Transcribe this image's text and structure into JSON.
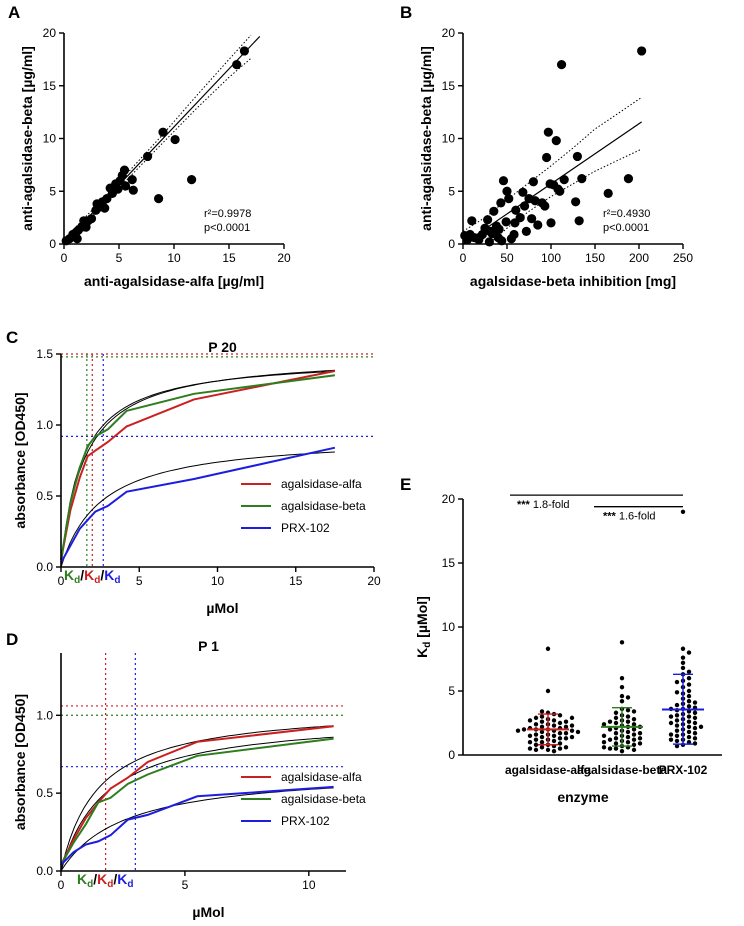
{
  "chart_data": [
    {
      "id": "A",
      "panel_label": "A",
      "type": "scatter",
      "xlabel": "anti-agalsidase-alfa [µg/ml]",
      "ylabel": "anti-agalsidase-beta [µg/ml]",
      "xlim": [
        0,
        20
      ],
      "ylim": [
        0,
        20
      ],
      "xticks": [
        0,
        5,
        10,
        15,
        20
      ],
      "yticks": [
        0,
        5,
        10,
        15,
        20
      ],
      "stat_r2": "r²=0.9978",
      "stat_p": "p<0.0001",
      "regression": {
        "slope": 1.1,
        "intercept": 0.1,
        "x_range": [
          0,
          17.8
        ]
      },
      "ci_lower": {
        "x": [
          0,
          3,
          6,
          9,
          12,
          15,
          17
        ],
        "y": [
          -0.15,
          3.1,
          6.4,
          9.6,
          12.8,
          15.8,
          17.6
        ]
      },
      "ci_upper": {
        "x": [
          0,
          3,
          6,
          9,
          12,
          15,
          17
        ],
        "y": [
          0.45,
          3.7,
          7.0,
          10.4,
          14.0,
          17.5,
          19.8
        ]
      },
      "points": [
        [
          0.2,
          0.3
        ],
        [
          0.5,
          0.5
        ],
        [
          0.8,
          0.9
        ],
        [
          1.0,
          0.7
        ],
        [
          1.1,
          1.1
        ],
        [
          1.2,
          0.5
        ],
        [
          1.3,
          1.3
        ],
        [
          1.6,
          1.6
        ],
        [
          1.8,
          2.2
        ],
        [
          2.0,
          1.6
        ],
        [
          2.2,
          2.2
        ],
        [
          2.5,
          2.4
        ],
        [
          2.9,
          3.2
        ],
        [
          3.0,
          3.8
        ],
        [
          3.2,
          3.5
        ],
        [
          3.5,
          4.0
        ],
        [
          3.7,
          3.4
        ],
        [
          3.9,
          4.3
        ],
        [
          4.2,
          5.3
        ],
        [
          4.4,
          4.8
        ],
        [
          4.7,
          5.7
        ],
        [
          4.9,
          5.2
        ],
        [
          5.1,
          6.0
        ],
        [
          5.3,
          6.5
        ],
        [
          5.5,
          7.0
        ],
        [
          5.6,
          5.5
        ],
        [
          6.2,
          6.1
        ],
        [
          6.3,
          5.1
        ],
        [
          7.6,
          8.3
        ],
        [
          8.6,
          4.3
        ],
        [
          9.0,
          10.6
        ],
        [
          10.1,
          9.9
        ],
        [
          11.6,
          6.1
        ],
        [
          15.7,
          17.0
        ],
        [
          16.4,
          18.3
        ]
      ]
    },
    {
      "id": "B",
      "panel_label": "B",
      "type": "scatter",
      "xlabel": "agalsidase-beta inhibition [mg]",
      "ylabel": "anti-agalsidase-beta [µg/ml]",
      "xlim": [
        0,
        250
      ],
      "ylim": [
        0,
        20
      ],
      "xticks": [
        0,
        50,
        100,
        150,
        200,
        250
      ],
      "yticks": [
        0,
        5,
        10,
        15,
        20
      ],
      "stat_r2": "r²=0.4930",
      "stat_p": "p<0.0001",
      "regression": {
        "slope": 0.057,
        "intercept": 0.0,
        "x_range": [
          0,
          203
        ]
      },
      "ci_lower": {
        "x": [
          0,
          25,
          50,
          75,
          100,
          125,
          150,
          175,
          203
        ],
        "y": [
          -2.4,
          -0.3,
          1.5,
          3.1,
          4.5,
          5.7,
          6.9,
          7.9,
          9.0
        ]
      },
      "ci_upper": {
        "x": [
          0,
          25,
          50,
          75,
          100,
          125,
          150,
          175,
          203
        ],
        "y": [
          1.2,
          2.5,
          4.2,
          5.8,
          7.4,
          9.1,
          10.9,
          12.3,
          13.9
        ]
      },
      "points": [
        [
          2,
          0.8
        ],
        [
          5,
          0.4
        ],
        [
          8,
          0.9
        ],
        [
          10,
          2.2
        ],
        [
          13,
          0.6
        ],
        [
          18,
          0.4
        ],
        [
          22,
          0.9
        ],
        [
          25,
          1.5
        ],
        [
          28,
          2.3
        ],
        [
          30,
          0.2
        ],
        [
          31,
          1.2
        ],
        [
          33,
          1.0
        ],
        [
          35,
          3.1
        ],
        [
          37,
          1.4
        ],
        [
          38,
          1.7
        ],
        [
          40,
          0.6
        ],
        [
          41,
          1.4
        ],
        [
          43,
          3.9
        ],
        [
          44,
          0.3
        ],
        [
          46,
          6.0
        ],
        [
          49,
          2.1
        ],
        [
          50,
          5.0
        ],
        [
          52,
          4.3
        ],
        [
          55,
          0.5
        ],
        [
          58,
          0.9
        ],
        [
          59,
          2.0
        ],
        [
          60,
          3.2
        ],
        [
          65,
          2.5
        ],
        [
          68,
          4.9
        ],
        [
          70,
          3.6
        ],
        [
          72,
          1.2
        ],
        [
          75,
          4.3
        ],
        [
          78,
          2.4
        ],
        [
          80,
          5.9
        ],
        [
          82,
          4.1
        ],
        [
          85,
          1.8
        ],
        [
          90,
          3.9
        ],
        [
          93,
          3.6
        ],
        [
          95,
          8.2
        ],
        [
          97,
          10.6
        ],
        [
          99,
          5.7
        ],
        [
          100,
          2.0
        ],
        [
          103,
          5.6
        ],
        [
          106,
          9.8
        ],
        [
          108,
          5.2
        ],
        [
          110,
          5.0
        ],
        [
          112,
          17.0
        ],
        [
          115,
          6.1
        ],
        [
          128,
          4.0
        ],
        [
          130,
          8.3
        ],
        [
          132,
          2.2
        ],
        [
          135,
          6.2
        ],
        [
          165,
          4.8
        ],
        [
          188,
          6.2
        ],
        [
          203,
          18.3
        ]
      ]
    },
    {
      "id": "C",
      "panel_label": "C",
      "type": "line",
      "title": "P 20",
      "xlabel": "µMol",
      "ylabel": "absorbance [OD450]",
      "xlim": [
        0,
        20
      ],
      "ylim": [
        0,
        1.5
      ],
      "xticks": [
        0,
        5,
        10,
        15,
        20
      ],
      "yticks": [
        0.0,
        0.5,
        1.0,
        1.5
      ],
      "xtick_labels": [
        "0",
        "5",
        "10",
        "15",
        "20"
      ],
      "ytick_labels": [
        "0.0",
        "0.5",
        "1.0",
        "1.5"
      ],
      "series": [
        {
          "name": "agalsidase-alfa",
          "color": "#cc1f1f",
          "x": [
            0,
            0.6,
            1.2,
            1.7,
            2.2,
            3.0,
            4.2,
            8.5,
            17.5
          ],
          "y": [
            0.05,
            0.4,
            0.63,
            0.78,
            0.82,
            0.88,
            0.99,
            1.18,
            1.38
          ]
        },
        {
          "name": "agalsidase-beta",
          "color": "#2e7d1e",
          "x": [
            0,
            0.6,
            1.2,
            1.7,
            2.2,
            3.0,
            4.2,
            8.5,
            17.5
          ],
          "y": [
            0.05,
            0.45,
            0.7,
            0.85,
            0.92,
            0.97,
            1.1,
            1.22,
            1.35
          ]
        },
        {
          "name": "PRX-102",
          "color": "#1d1de0",
          "x": [
            0,
            0.6,
            1.2,
            1.7,
            2.2,
            3.0,
            4.2,
            8.5,
            17.5
          ],
          "y": [
            0.03,
            0.15,
            0.27,
            0.33,
            0.39,
            0.43,
            0.53,
            0.62,
            0.84
          ]
        }
      ],
      "fit_curves": [
        {
          "name": "fit-alfa",
          "bmax": 1.5,
          "kd": 1.45,
          "x_end": 17.5
        },
        {
          "name": "fit-beta",
          "bmax": 1.48,
          "kd": 1.3,
          "x_end": 17.5
        },
        {
          "name": "fit-prx",
          "bmax": 0.93,
          "kd": 2.6,
          "x_end": 17.5
        }
      ],
      "ref_lines": [
        {
          "name": "bmax-alfa",
          "axis": "y",
          "value": 1.5,
          "color": "#cc1f1f"
        },
        {
          "name": "bmax-beta",
          "axis": "y",
          "value": 1.48,
          "color": "#2e7d1e"
        },
        {
          "name": "half-prx",
          "axis": "y",
          "value": 0.92,
          "color": "#1d1de0"
        },
        {
          "name": "kd-beta",
          "axis": "x",
          "value": 1.65,
          "color": "#2e7d1e"
        },
        {
          "name": "kd-alfa",
          "axis": "x",
          "value": 2.0,
          "color": "#cc1f1f"
        },
        {
          "name": "kd-prx",
          "axis": "x",
          "value": 2.7,
          "color": "#1d1de0"
        }
      ],
      "kd_label": {
        "k": "K",
        "d": "d",
        "sep": "/"
      }
    },
    {
      "id": "D",
      "panel_label": "D",
      "type": "line",
      "title": "P 1",
      "xlabel": "µMol",
      "ylabel": "absorbance [OD450]",
      "xlim": [
        0,
        11.5
      ],
      "ylim": [
        0,
        1.4
      ],
      "xticks": [
        0,
        5,
        10
      ],
      "yticks": [
        0.0,
        0.5,
        1.0
      ],
      "xtick_labels": [
        "0",
        "5",
        "10"
      ],
      "ytick_labels": [
        "0.0",
        "0.5",
        "1.0"
      ],
      "series": [
        {
          "name": "agalsidase-alfa",
          "color": "#cc1f1f",
          "x": [
            0,
            0.5,
            1.0,
            1.5,
            2.0,
            2.7,
            3.5,
            5.5,
            11
          ],
          "y": [
            0.04,
            0.2,
            0.34,
            0.44,
            0.53,
            0.6,
            0.7,
            0.83,
            0.93
          ]
        },
        {
          "name": "agalsidase-beta",
          "color": "#2e7d1e",
          "x": [
            0,
            0.5,
            1.0,
            1.5,
            2.0,
            2.7,
            3.5,
            5.5,
            11
          ],
          "y": [
            0.04,
            0.18,
            0.3,
            0.44,
            0.47,
            0.56,
            0.62,
            0.74,
            0.85
          ]
        },
        {
          "name": "PRX-102",
          "color": "#1d1de0",
          "x": [
            0,
            0.5,
            1.0,
            1.5,
            2.0,
            2.7,
            3.5,
            5.5,
            11
          ],
          "y": [
            0.04,
            0.12,
            0.17,
            0.19,
            0.23,
            0.33,
            0.36,
            0.48,
            0.54
          ]
        }
      ],
      "fit_curves": [
        {
          "name": "fit-alfa",
          "bmax": 1.06,
          "kd": 1.5,
          "x_end": 11
        },
        {
          "name": "fit-beta",
          "bmax": 1.0,
          "kd": 1.8,
          "x_end": 11
        },
        {
          "name": "fit-prx",
          "bmax": 0.66,
          "kd": 2.6,
          "x_end": 11
        }
      ],
      "ref_lines": [
        {
          "name": "bmax-alfa",
          "axis": "y",
          "value": 1.06,
          "color": "#cc1f1f"
        },
        {
          "name": "bmax-beta",
          "axis": "y",
          "value": 1.0,
          "color": "#2e7d1e"
        },
        {
          "name": "half-prx",
          "axis": "y",
          "value": 0.67,
          "color": "#1d1de0"
        },
        {
          "name": "kd-alfa",
          "axis": "x",
          "value": 1.8,
          "color": "#cc1f1f"
        },
        {
          "name": "kd-prx",
          "axis": "x",
          "value": 3.0,
          "color": "#1d1de0"
        }
      ],
      "kd_label": {
        "k": "K",
        "d": "d",
        "sep": "/"
      }
    },
    {
      "id": "E",
      "panel_label": "E",
      "type": "scatter",
      "xlabel": "enzyme",
      "ylabel": "K",
      "ylabel_sub": "d",
      "ylabel_unit": " [µMol]",
      "ylim": [
        0,
        20
      ],
      "yticks": [
        0,
        5,
        10,
        15,
        20
      ],
      "categories": [
        "agalsidase-alfa",
        "agalsidase-beta",
        "PRX-102"
      ],
      "group_stats": [
        {
          "name": "agalsidase-alfa",
          "mean": 2.0,
          "sd_low": 0.8,
          "sd_high": 3.2,
          "color": "#cc1f1f"
        },
        {
          "name": "agalsidase-beta",
          "mean": 2.2,
          "sd_low": 0.7,
          "sd_high": 3.7,
          "color": "#2e7d1e"
        },
        {
          "name": "PRX-102",
          "mean": 3.55,
          "sd_low": 0.85,
          "sd_high": 6.3,
          "color": "#1d1de0"
        }
      ],
      "significance": [
        {
          "stars": "***",
          "text": "1.8-fold",
          "from": 0,
          "to": 2,
          "y": 20.3
        },
        {
          "stars": "***",
          "text": "1.6-fold",
          "from": 1,
          "to": 2,
          "y": 19.4
        }
      ],
      "groups": [
        {
          "name": "agalsidase-alfa",
          "values": [
            8.3,
            5.0,
            3.3,
            3.2,
            3.0,
            3.1,
            2.8,
            2.9,
            2.7,
            2.6,
            2.5,
            2.6,
            2.4,
            2.3,
            2.4,
            2.2,
            2.1,
            2.2,
            2.0,
            2.1,
            1.9,
            2.0,
            1.8,
            1.9,
            1.7,
            1.6,
            1.7,
            1.5,
            1.6,
            1.4,
            1.5,
            1.3,
            1.2,
            1.3,
            1.1,
            1.2,
            1.0,
            0.9,
            1.0,
            0.8,
            0.7,
            0.8,
            0.6,
            0.5,
            0.6,
            0.4,
            0.3,
            0.4,
            3.4,
            2.0,
            1.8,
            1.4,
            2.7,
            2.3,
            2.9,
            1.9,
            0.5
          ]
        },
        {
          "name": "agalsidase-beta",
          "values": [
            8.8,
            6.0,
            5.3,
            4.6,
            4.2,
            3.6,
            3.5,
            3.3,
            3.1,
            3.0,
            2.9,
            2.7,
            2.6,
            2.5,
            2.4,
            2.3,
            2.2,
            2.1,
            2.0,
            2.0,
            1.9,
            1.8,
            1.7,
            1.6,
            1.5,
            1.4,
            1.3,
            1.2,
            1.2,
            1.1,
            1.0,
            0.9,
            0.9,
            0.8,
            0.7,
            0.6,
            0.5,
            0.5,
            0.4,
            0.3,
            2.8,
            2.2,
            1.7,
            1.5,
            3.4,
            2.6,
            1.0,
            0.6,
            1.3,
            2.4,
            4.5
          ]
        },
        {
          "name": "PRX-102",
          "values": [
            19.0,
            8.3,
            8.0,
            7.6,
            7.2,
            6.8,
            6.3,
            6.0,
            5.8,
            5.5,
            5.3,
            5.0,
            4.8,
            4.6,
            4.4,
            4.2,
            4.0,
            3.9,
            3.8,
            3.7,
            3.6,
            3.5,
            3.4,
            3.3,
            3.2,
            3.1,
            3.0,
            2.9,
            2.8,
            2.7,
            2.6,
            2.5,
            2.4,
            2.3,
            2.2,
            2.1,
            2.0,
            1.9,
            1.8,
            1.7,
            1.6,
            1.5,
            1.4,
            1.3,
            1.2,
            1.1,
            1.0,
            0.9,
            0.8,
            0.7,
            4.9,
            3.6,
            2.5,
            1.6,
            5.7,
            3.0,
            6.5,
            2.2,
            1.2,
            4.1
          ]
        }
      ]
    }
  ]
}
